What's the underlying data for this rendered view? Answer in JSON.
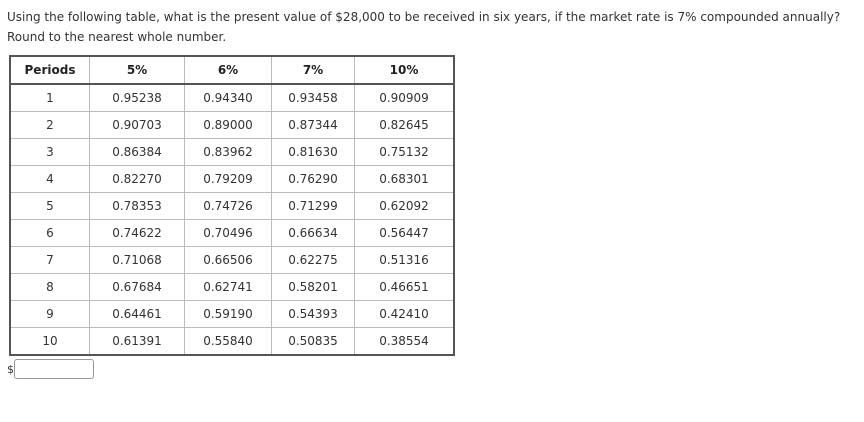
{
  "question": {
    "line1": "Using the following table, what is the present value of $28,000 to be received in six years, if the market rate is 7% compounded annually?",
    "line2": "Round to the nearest whole number."
  },
  "table": {
    "header": [
      "Periods",
      "5%",
      "6%",
      "7%",
      "10%"
    ],
    "rows": [
      [
        "1",
        "0.95238",
        "0.94340",
        "0.93458",
        "0.90909"
      ],
      [
        "2",
        "0.90703",
        "0.89000",
        "0.87344",
        "0.82645"
      ],
      [
        "3",
        "0.86384",
        "0.83962",
        "0.81630",
        "0.75132"
      ],
      [
        "4",
        "0.82270",
        "0.79209",
        "0.76290",
        "0.68301"
      ],
      [
        "5",
        "0.78353",
        "0.74726",
        "0.71299",
        "0.62092"
      ],
      [
        "6",
        "0.74622",
        "0.70496",
        "0.66634",
        "0.56447"
      ],
      [
        "7",
        "0.71068",
        "0.66506",
        "0.62275",
        "0.51316"
      ],
      [
        "8",
        "0.67684",
        "0.62741",
        "0.58201",
        "0.46651"
      ],
      [
        "9",
        "0.64461",
        "0.59190",
        "0.54393",
        "0.42410"
      ],
      [
        "10",
        "0.61391",
        "0.55840",
        "0.50835",
        "0.38554"
      ]
    ]
  },
  "answer": {
    "prefix": "$"
  }
}
